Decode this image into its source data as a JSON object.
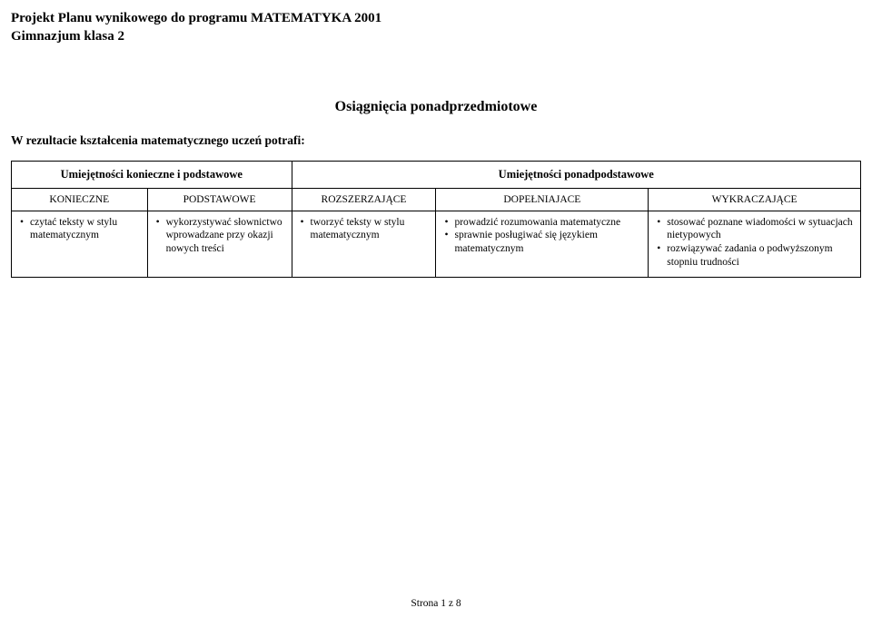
{
  "header": {
    "title_line1": "Projekt Planu wynikowego do programu MATEMATYKA 2001",
    "title_line2": "Gimnazjum klasa 2"
  },
  "section": {
    "heading": "Osiągnięcia ponadprzedmiotowe",
    "subtitle": "W rezultacie kształcenia matematycznego uczeń potrafi:"
  },
  "table": {
    "group_headers": {
      "left": "Umiejętności konieczne i podstawowe",
      "right": "Umiejętności ponadpodstawowe"
    },
    "columns": {
      "c1": "KONIECZNE",
      "c2": "PODSTAWOWE",
      "c3": "ROZSZERZAJĄCE",
      "c4": "DOPEŁNIAJACE",
      "c5": "WYKRACZAJĄCE"
    },
    "cells": {
      "c1": [
        "czytać teksty w stylu matematycznym"
      ],
      "c2": [
        "wykorzystywać słownictwo wprowadzane przy okazji nowych treści"
      ],
      "c3": [
        "tworzyć teksty w stylu matematycznym"
      ],
      "c4": [
        "prowadzić rozumowania matematyczne",
        "sprawnie posługiwać się językiem matematycznym"
      ],
      "c5": [
        "stosować poznane wiadomości w sytuacjach nietypowych",
        "rozwiązywać zadania o podwyższonym stopniu trudności"
      ]
    },
    "col_widths_pct": [
      16,
      17,
      17,
      25,
      25
    ]
  },
  "footer": {
    "text": "Strona 1 z 8"
  },
  "style": {
    "background_color": "#ffffff",
    "text_color": "#000000",
    "border_color": "#000000",
    "font_family": "Times New Roman"
  }
}
